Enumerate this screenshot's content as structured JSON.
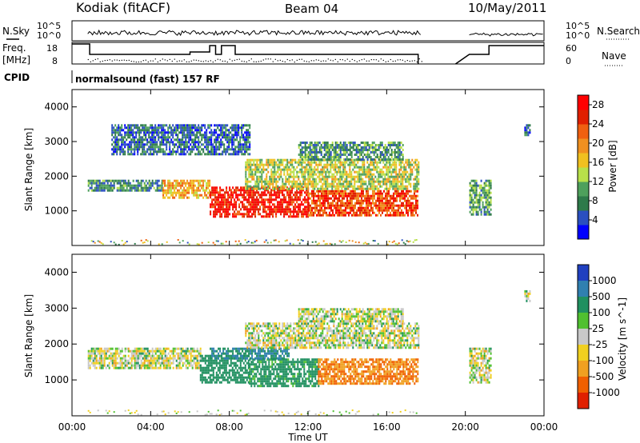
{
  "header": {
    "station": "Kodiak (fitACF)",
    "beam": "Beam 04",
    "date": "10/May/2011"
  },
  "summary_panel": {
    "left_labels": [
      "N.Sky",
      "Freq.",
      "[MHz]",
      "CPID"
    ],
    "right_labels": [
      "N.Search",
      "Nave"
    ],
    "noise_ticks_left": [
      "10^5",
      "10^0"
    ],
    "noise_ticks_right": [
      "10^5",
      "10^0"
    ],
    "freq_ticks": [
      "18",
      "8"
    ],
    "nave_ticks": [
      "60",
      "0"
    ],
    "cpid_text": "normalsound (fast) 157 RF"
  },
  "colors": {
    "power_scale": [
      "#0000ff",
      "#2a4fc0",
      "#2e7a4a",
      "#4ea05c",
      "#b8e04a",
      "#f0c020",
      "#f09020",
      "#f06010",
      "#e02000",
      "#ff0000"
    ],
    "velocity_scale": [
      "#2040c0",
      "#3080b0",
      "#209060",
      "#50c030",
      "#c8c8c8",
      "#f0d020",
      "#f0a020",
      "#f06000",
      "#e02000"
    ]
  },
  "chart_data": [
    {
      "type": "heatmap",
      "title": "",
      "xlabel": "",
      "ylabel": "Slant Range [km]",
      "x_ticks": [
        "00:00",
        "04:00",
        "08:00",
        "12:00",
        "16:00",
        "20:00",
        "00:00"
      ],
      "xlim": [
        0,
        24
      ],
      "ylim": [
        0,
        4500
      ],
      "y_ticks": [
        1000,
        2000,
        3000,
        4000
      ],
      "colorbar": {
        "label": "Power [dB]",
        "ticks": [
          4,
          8,
          12,
          16,
          20,
          24,
          28
        ],
        "range": [
          0,
          30
        ]
      },
      "regions": [
        {
          "t": [
            0.8,
            4.6
          ],
          "range_km": [
            1600,
            1900
          ],
          "value": 8
        },
        {
          "t": [
            4.6,
            7.0
          ],
          "range_km": [
            1350,
            1900
          ],
          "value": 18
        },
        {
          "t": [
            7.0,
            12.0
          ],
          "range_km": [
            850,
            1700
          ],
          "value": 27
        },
        {
          "t": [
            12.0,
            17.6
          ],
          "range_km": [
            900,
            1600
          ],
          "value": 24
        },
        {
          "t": [
            8.8,
            17.6
          ],
          "range_km": [
            1600,
            2500
          ],
          "value": 14
        },
        {
          "t": [
            11.5,
            16.8
          ],
          "range_km": [
            2500,
            3000
          ],
          "value": 9
        },
        {
          "t": [
            2.0,
            9.0
          ],
          "range_km": [
            2600,
            3500
          ],
          "value": 6
        },
        {
          "t": [
            20.2,
            21.3
          ],
          "range_km": [
            900,
            1900
          ],
          "value": 10
        },
        {
          "t": [
            23.0,
            23.3
          ],
          "range_km": [
            3200,
            3500
          ],
          "value": 6
        }
      ]
    },
    {
      "type": "heatmap",
      "title": "",
      "xlabel": "Time UT",
      "ylabel": "Slant Range [km]",
      "x_ticks": [
        "00:00",
        "04:00",
        "08:00",
        "12:00",
        "16:00",
        "20:00",
        "00:00"
      ],
      "xlim": [
        0,
        24
      ],
      "ylim": [
        0,
        4500
      ],
      "y_ticks": [
        1000,
        2000,
        3000,
        4000
      ],
      "colorbar": {
        "label": "Velocity [m s^-1]",
        "ticks": [
          "1000",
          "500",
          "100",
          "25",
          "-25",
          "-100",
          "-500",
          "-1000"
        ]
      },
      "regions": [
        {
          "t": [
            0.8,
            6.5
          ],
          "range_km": [
            1350,
            1900
          ],
          "value": 0
        },
        {
          "t": [
            6.5,
            9.0
          ],
          "range_km": [
            900,
            1700
          ],
          "value": 150
        },
        {
          "t": [
            9.0,
            12.5
          ],
          "range_km": [
            800,
            1600
          ],
          "value": 120
        },
        {
          "t": [
            12.5,
            17.6
          ],
          "range_km": [
            900,
            1600
          ],
          "value": -300
        },
        {
          "t": [
            7.0,
            11.0
          ],
          "range_km": [
            1600,
            1900
          ],
          "value": 300
        },
        {
          "t": [
            8.8,
            17.6
          ],
          "range_km": [
            1900,
            2600
          ],
          "value": 0
        },
        {
          "t": [
            11.5,
            16.8
          ],
          "range_km": [
            2600,
            3000
          ],
          "value": 0
        },
        {
          "t": [
            20.2,
            21.3
          ],
          "range_km": [
            900,
            1900
          ],
          "value": 0
        },
        {
          "t": [
            23.0,
            23.3
          ],
          "range_km": [
            3200,
            3500
          ],
          "value": 0
        }
      ]
    }
  ]
}
